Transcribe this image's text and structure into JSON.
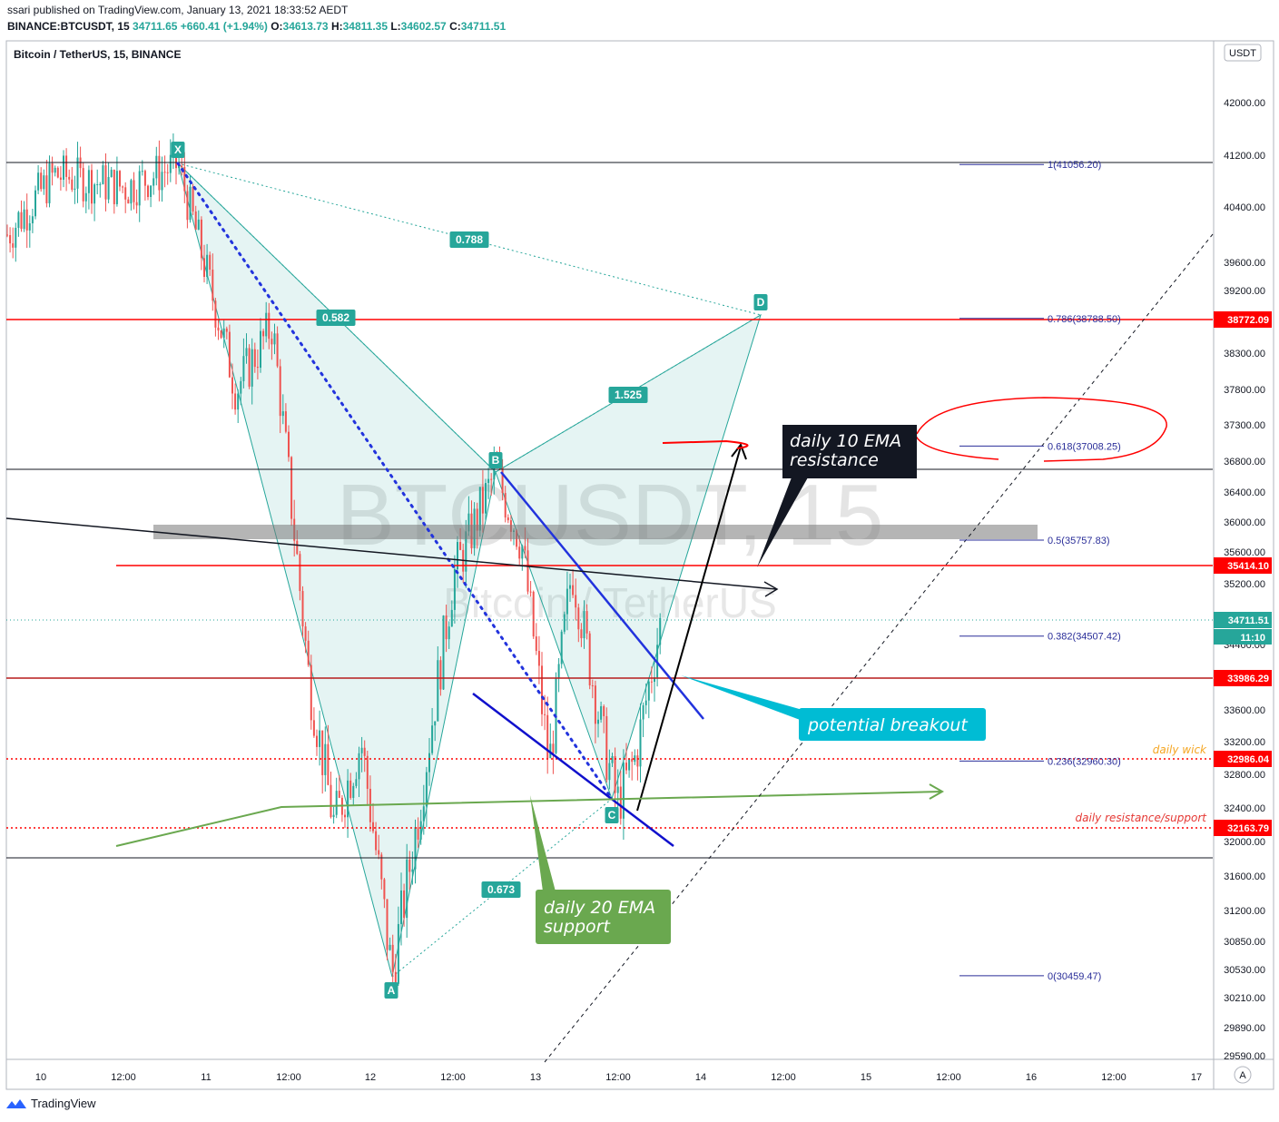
{
  "header": {
    "publisher": "ssari published on TradingView.com, January 13, 2021 18:33:52 AEDT",
    "symbol": "BINANCE:BTCUSDT, 15",
    "last": "34711.65",
    "change": "+660.41 (+1.94%)",
    "open_label": "O:",
    "open": "34613.73",
    "high_label": "H:",
    "high": "34811.35",
    "low_label": "L:",
    "low": "34602.57",
    "close_label": "C:",
    "close": "34711.51"
  },
  "chart_data": {
    "type": "candlestick",
    "title": "Bitcoin / TetherUS, 15, BINANCE",
    "watermark_symbol": "BTCUSDT, 15",
    "watermark_name": "Bitcoin / TetherUS",
    "currency": "USDT",
    "colors": {
      "up": "#26a69a",
      "down": "#ef5350",
      "pattern": "#26a69a",
      "level": "#ff0000",
      "fib": "#2a2e99",
      "ema_support": "#6aa84f",
      "breakout": "#00bcd4"
    },
    "y_ticks": [
      42000,
      41200,
      40400,
      39600,
      39200,
      38300,
      37800,
      37300,
      36800,
      36400,
      36000,
      35600,
      35200,
      34400,
      33600,
      33200,
      32800,
      32400,
      32000,
      31600,
      31200,
      30850,
      30530,
      30210,
      29890,
      29590
    ],
    "y_tick_labels": [
      "42000.00",
      "41200.00",
      "40400.00",
      "39600.00",
      "39200.00",
      "38300.00",
      "37800.00",
      "37300.00",
      "36800.00",
      "36400.00",
      "36000.00",
      "35600.00",
      "35200.00",
      "34400.00",
      "33600.00",
      "33200.00",
      "32800.00",
      "32400.00",
      "32000.00",
      "31600.00",
      "31200.00",
      "30850.00",
      "30530.00",
      "30210.00",
      "29890.00",
      "29590.00"
    ],
    "x_ticks": [
      "10",
      "12:00",
      "11",
      "12:00",
      "12",
      "12:00",
      "13",
      "12:00",
      "14",
      "12:00",
      "15",
      "12:00",
      "16",
      "12:00",
      "17"
    ],
    "price_labels": [
      {
        "value": 38772.09,
        "text": "38772.09",
        "color": "#ff0000"
      },
      {
        "value": 35414.1,
        "text": "35414.10",
        "color": "#ff0000"
      },
      {
        "value": 34711.51,
        "text": "34711.51",
        "color": "#26a69a"
      },
      {
        "value": 33986.29,
        "text": "33986.29",
        "color": "#ff0000"
      },
      {
        "value": 32986.04,
        "text": "32986.04",
        "color": "#ff0000"
      },
      {
        "value": 32163.79,
        "text": "32163.79",
        "color": "#ff0000"
      }
    ],
    "countdown": "11:10",
    "fib_levels": [
      {
        "ratio": "1",
        "price": 41056.2,
        "text": "1(41056.20)"
      },
      {
        "ratio": "0.786",
        "price": 38788.5,
        "text": "0.786(38788.50)"
      },
      {
        "ratio": "0.618",
        "price": 37008.25,
        "text": "0.618(37008.25)"
      },
      {
        "ratio": "0.5",
        "price": 35757.83,
        "text": "0.5(35757.83)"
      },
      {
        "ratio": "0.382",
        "price": 34507.42,
        "text": "0.382(34507.42)"
      },
      {
        "ratio": "0.236",
        "price": 32960.3,
        "text": "0.236(32960.30)"
      },
      {
        "ratio": "0",
        "price": 30459.47,
        "text": "0(30459.47)"
      }
    ],
    "pattern_points": [
      {
        "label": "X",
        "price": 41056
      },
      {
        "label": "A",
        "price": 30459
      },
      {
        "label": "B",
        "price": 36660
      },
      {
        "label": "C",
        "price": 32450
      },
      {
        "label": "D",
        "price": 38788
      }
    ],
    "pattern_ratios": [
      "0.788",
      "0.582",
      "1.525",
      "0.673"
    ],
    "annotations": {
      "ema10": "daily 10 EMA resistance",
      "ema10_line1": "daily 10 EMA",
      "ema10_line2": "resistance",
      "breakout": "potential breakout",
      "ema20_line1": "daily 20 EMA",
      "ema20_line2": "support",
      "daily_wick": "daily wick",
      "daily_rs": "daily resistance/support"
    }
  },
  "footer": {
    "brand": "TradingView"
  }
}
